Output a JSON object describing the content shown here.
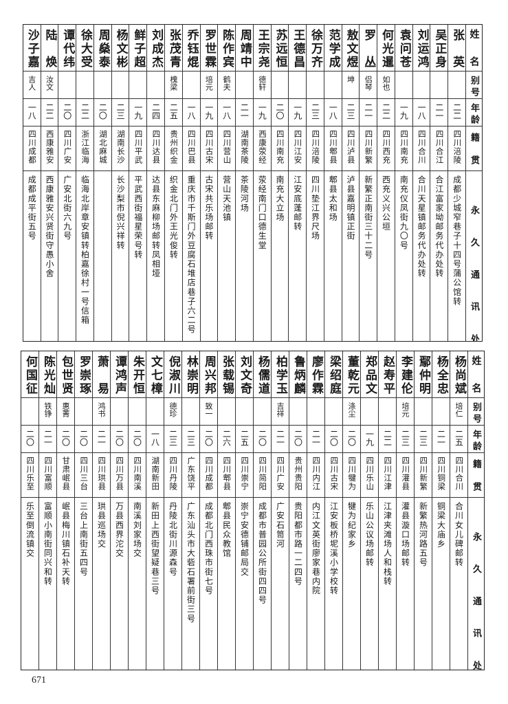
{
  "header": {
    "name": "姓名",
    "alias": "别号",
    "age": "年龄",
    "origin": "籍贯",
    "address": "永久通讯处"
  },
  "tables": [
    {
      "rows": [
        {
          "name": "张英",
          "alias": "",
          "age": "二二",
          "origin": "四川涪陵",
          "address": "成都少城窄巷子十四号蒲公馆转"
        },
        {
          "name": "吴正身",
          "alias": "",
          "age": "二一",
          "origin": "四川合江",
          "address": "合江富家坳邮务代办处转"
        },
        {
          "name": "刘运鸿",
          "alias": "",
          "age": "一八",
          "origin": "四川合川",
          "address": "合川天星镇邮务代办处转"
        },
        {
          "name": "袁问苍",
          "alias": "",
          "age": "一九",
          "origin": "四川南充",
          "address": "南充仪凤街九〇号"
        },
        {
          "name": "何光暹",
          "alias": "如也",
          "age": "二二",
          "origin": "四川西充",
          "address": "西充义兴公垣"
        },
        {
          "name": "罗丛",
          "alias": "侣琴",
          "age": "二一",
          "origin": "四川新繁",
          "address": "新繁正南街三十二号"
        },
        {
          "name": "敖文煜",
          "alias": "坤",
          "age": "二三",
          "origin": "四川泸县",
          "address": "泸县嘉明镇正街"
        },
        {
          "name": "范学成",
          "alias": "",
          "age": "一八",
          "origin": "四川郫县",
          "address": "郫县太和场"
        },
        {
          "name": "徐万齐",
          "alias": "",
          "age": "二三",
          "origin": "四川涪陵",
          "address": "四川垫江界尺场"
        },
        {
          "name": "王德昌",
          "alias": "",
          "age": "一九",
          "origin": "四川江安",
          "address": "江安底蓬邮转"
        },
        {
          "name": "苏远恒",
          "alias": "",
          "age": "二〇",
          "origin": "四川南充",
          "address": "南充大立场"
        },
        {
          "name": "王宗尧",
          "alias": "德轩",
          "age": "一九",
          "origin": "西康荥经",
          "address": "荥经南门口德生堂"
        },
        {
          "name": "周靖中",
          "alias": "",
          "age": "二一",
          "origin": "湖南茶陵",
          "address": "茶陵河场"
        },
        {
          "name": "陈作宾",
          "alias": "鹤夫",
          "age": "一八",
          "origin": "四川营山",
          "address": "营山天池镇"
        },
        {
          "name": "罗世霖",
          "alias": "培元",
          "age": "一九",
          "origin": "四川古宋",
          "address": "古宋共乐场邮转"
        },
        {
          "name": "乔钰焜",
          "alias": "",
          "age": "一八",
          "origin": "四川巴县",
          "address": "重庆市千斯门外豆腐石堆店巷子六二号"
        },
        {
          "name": "张茂青",
          "alias": "槐梁",
          "age": "二五",
          "origin": "贵州织金",
          "address": "织金北门外王光俊转"
        },
        {
          "name": "刘成杰",
          "alias": "",
          "age": "二四",
          "origin": "四川达县",
          "address": "达县东麻柳场邮转凤相垭"
        },
        {
          "name": "鲜子超",
          "alias": "",
          "age": "一九",
          "origin": "四川平武",
          "address": "平武西街福星荣号转"
        },
        {
          "name": "杨文彬",
          "alias": "",
          "age": "二三",
          "origin": "湖南长沙",
          "address": "长沙梨市倪兴祥转"
        },
        {
          "name": "周燊泰",
          "alias": "",
          "age": "二〇",
          "origin": "湖北麻城",
          "address": ""
        },
        {
          "name": "徐大受",
          "alias": "",
          "age": "二二",
          "origin": "浙江临海",
          "address": "临海北岸章安镇转柏嘉徐村一号信箱"
        },
        {
          "name": "谭代纬",
          "alias": "",
          "age": "二〇",
          "origin": "四川广安",
          "address": "广安北街六九号"
        },
        {
          "name": "陆焕",
          "alias": "汝文",
          "age": "二二",
          "origin": "西康雅安",
          "address": "西康雅安兴贤街守愚小舍"
        },
        {
          "name": "沙子嘉",
          "alias": "吉人",
          "age": "一八",
          "origin": "四川成都",
          "address": "成都成平街五号"
        }
      ]
    },
    {
      "rows": [
        {
          "name": "杨尚斌",
          "alias": "培仁",
          "age": "二五",
          "origin": "四川合川",
          "address": "合川女儿碑邮转"
        },
        {
          "name": "杨全忠",
          "alias": "",
          "age": "二一",
          "origin": "四川铜梁",
          "address": "铜梁大庙乡"
        },
        {
          "name": "鄢仲明",
          "alias": "",
          "age": "二三",
          "origin": "四川新繁",
          "address": "新繁热河路五号"
        },
        {
          "name": "李建伦",
          "alias": "培元",
          "age": "二三",
          "origin": "四川灌县",
          "address": "灌县漩口场邮转"
        },
        {
          "name": "赵寿平",
          "alias": "",
          "age": "二二",
          "origin": "四川江津",
          "address": "江津夹滩场人和栈转"
        },
        {
          "name": "郑品文",
          "alias": "",
          "age": "一九",
          "origin": "四川乐山",
          "address": "乐山公议场邮转"
        },
        {
          "name": "董乾元",
          "alias": "涤尘",
          "age": "二〇",
          "origin": "四川犍为",
          "address": "犍为纪家乡"
        },
        {
          "name": "梁绍庭",
          "alias": "",
          "age": "二〇",
          "origin": "四川古宋",
          "address": "江安板桥坭溪小学校转"
        },
        {
          "name": "廖作霖",
          "alias": "",
          "age": "二一",
          "origin": "四川内江",
          "address": "内江文英街廖家巷内院"
        },
        {
          "name": "鲁炳麟",
          "alias": "",
          "age": "二〇",
          "origin": "贵州贵阳",
          "address": "贵阳都市路一二四号"
        },
        {
          "name": "柏学玉",
          "alias": "吉祥",
          "age": "二一",
          "origin": "四川广安",
          "address": "广安石笥河"
        },
        {
          "name": "杨儒道",
          "alias": "",
          "age": "二〇",
          "origin": "四川简阳",
          "address": "成都市普园公所街四四号"
        },
        {
          "name": "刘文奇",
          "alias": "",
          "age": "二五",
          "origin": "四川崇宁",
          "address": "崇宁安德铺邮局交"
        },
        {
          "name": "张载锡",
          "alias": "",
          "age": "二六",
          "origin": "四川郫县",
          "address": "郫县民众教馆"
        },
        {
          "name": "周兴邦",
          "alias": "致一",
          "age": "二〇",
          "origin": "四川成都",
          "address": "成都北门西珠市街七号"
        },
        {
          "name": "林崇明",
          "alias": "",
          "age": "二三",
          "origin": "广东饶平",
          "address": "广东汕头市大砦石署前街三号"
        },
        {
          "name": "倪淑川",
          "alias": "德珍",
          "age": "二三",
          "origin": "四川丹陵",
          "address": "丹陵北街川源森号"
        },
        {
          "name": "文七樟",
          "alias": "",
          "age": "一八",
          "origin": "湖南新田",
          "address": "新田上西街望疑巷三号"
        },
        {
          "name": "朱开恒",
          "alias": "",
          "age": "二〇",
          "origin": "四川南溪",
          "address": "南溪刘家场交"
        },
        {
          "name": "谭鸿声",
          "alias": "",
          "age": "二〇",
          "origin": "四川万县",
          "address": "万县西界沱交"
        },
        {
          "name": "萧易",
          "alias": "鸿书",
          "age": "二一",
          "origin": "四川珙县",
          "address": "珙县巡场交"
        },
        {
          "name": "罗崇琢",
          "alias": "",
          "age": "二〇",
          "origin": "四川三台",
          "address": "三台上南街五四号"
        },
        {
          "name": "包世贤",
          "alias": "惠菁",
          "age": "二〇",
          "origin": "甘肃岷县",
          "address": "岷县梅川镇石补天转"
        },
        {
          "name": "陈光灿",
          "alias": "铁铮",
          "age": "二一",
          "origin": "四川富顺",
          "address": "富顺小南街同兴和转"
        },
        {
          "name": "何国征",
          "alias": "",
          "age": "二〇",
          "origin": "四川乐至",
          "address": "乐至倒流镇交"
        }
      ]
    }
  ],
  "page_number": "671"
}
